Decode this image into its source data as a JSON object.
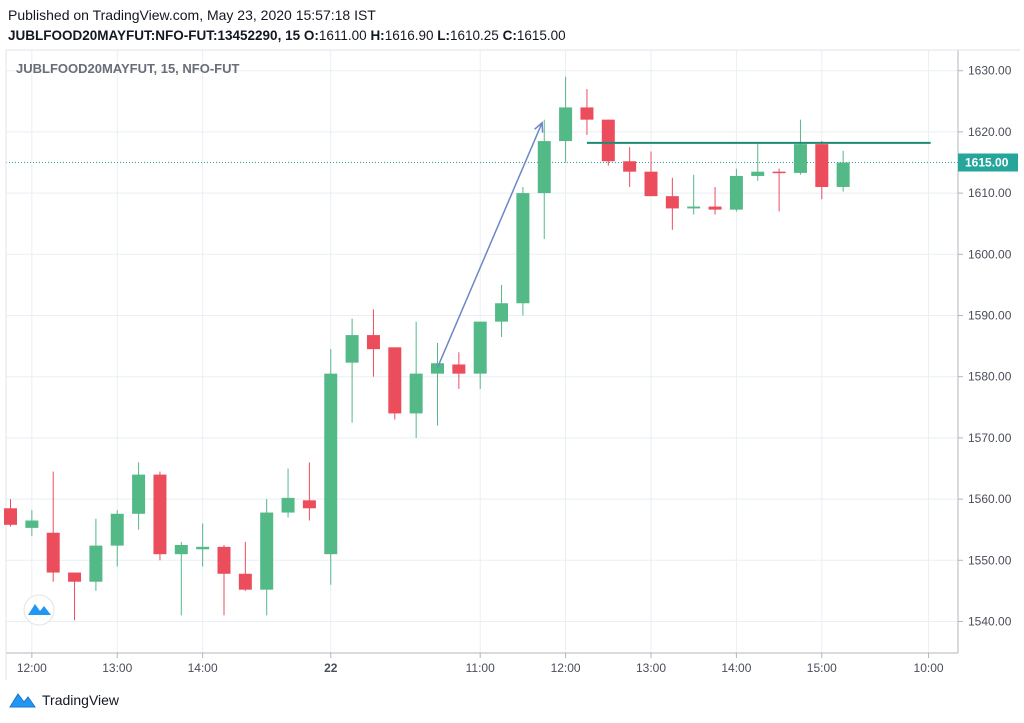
{
  "header": {
    "published": "Published on TradingView.com, May 23, 2020 15:57:18 IST",
    "symbol_line": "JUBLFOOD20MAYFUT:NFO-FUT:13452290, 15",
    "o_label": "O:",
    "o_value": "1611.00",
    "h_label": "H:",
    "h_value": "1616.90",
    "l_label": "L:",
    "l_value": "1610.25",
    "c_label": "C:",
    "c_value": "1615.00"
  },
  "chart_title": "JUBLFOOD20MAYFUT, 15, NFO-FUT",
  "footer": {
    "brand": "TradingView",
    "logo_icon": "tradingview-logo-icon"
  },
  "colors": {
    "up": "#53b987",
    "down": "#eb4d5c",
    "grid": "#e9eff4",
    "price_line": "#26a69a",
    "arrow": "#6d87c7",
    "resistance": "#1f8a70"
  },
  "chart_data": {
    "type": "candlestick",
    "ylim": [
      1535,
      1633
    ],
    "y_ticks": [
      1540,
      1550,
      1560,
      1570,
      1580,
      1590,
      1600,
      1610,
      1620,
      1630
    ],
    "y_tick_labels": [
      "1540.00",
      "1550.00",
      "1560.00",
      "1570.00",
      "1580.00",
      "1590.00",
      "1600.00",
      "1610.00",
      "1620.00",
      "1630.00"
    ],
    "x_ticks": [
      {
        "index": 1,
        "label": "12:00",
        "bold": false
      },
      {
        "index": 5,
        "label": "13:00",
        "bold": false
      },
      {
        "index": 9,
        "label": "14:00",
        "bold": false
      },
      {
        "index": 15,
        "label": "22",
        "bold": true
      },
      {
        "index": 22,
        "label": "11:00",
        "bold": false
      },
      {
        "index": 26,
        "label": "12:00",
        "bold": false
      },
      {
        "index": 30,
        "label": "13:00",
        "bold": false
      },
      {
        "index": 34,
        "label": "14:00",
        "bold": false
      },
      {
        "index": 38,
        "label": "15:00",
        "bold": false
      },
      {
        "index": 43,
        "label": "10:00",
        "bold": false
      }
    ],
    "last_price": 1615.0,
    "last_price_label": "1615.00",
    "candles": [
      {
        "o": 1558.5,
        "h": 1560.0,
        "l": 1555.5,
        "c": 1555.8
      },
      {
        "o": 1555.3,
        "h": 1558.2,
        "l": 1554.0,
        "c": 1556.5
      },
      {
        "o": 1554.5,
        "h": 1564.5,
        "l": 1546.5,
        "c": 1548.0
      },
      {
        "o": 1548.0,
        "h": 1548.0,
        "l": 1540.2,
        "c": 1546.5
      },
      {
        "o": 1546.5,
        "h": 1556.8,
        "l": 1545.0,
        "c": 1552.4
      },
      {
        "o": 1552.4,
        "h": 1558.2,
        "l": 1549.0,
        "c": 1557.6
      },
      {
        "o": 1557.6,
        "h": 1566.0,
        "l": 1555.0,
        "c": 1564.0
      },
      {
        "o": 1564.0,
        "h": 1564.5,
        "l": 1550.0,
        "c": 1551.0
      },
      {
        "o": 1551.0,
        "h": 1553.0,
        "l": 1541.0,
        "c": 1552.5
      },
      {
        "o": 1551.8,
        "h": 1556.0,
        "l": 1549.0,
        "c": 1552.2
      },
      {
        "o": 1552.2,
        "h": 1552.5,
        "l": 1541.0,
        "c": 1547.8
      },
      {
        "o": 1547.8,
        "h": 1553.0,
        "l": 1545.0,
        "c": 1545.2
      },
      {
        "o": 1545.2,
        "h": 1560.0,
        "l": 1541.0,
        "c": 1557.8
      },
      {
        "o": 1557.8,
        "h": 1565.0,
        "l": 1557.0,
        "c": 1560.2
      },
      {
        "o": 1559.8,
        "h": 1566.0,
        "l": 1556.5,
        "c": 1558.5
      },
      {
        "o": 1551.0,
        "h": 1584.5,
        "l": 1546.0,
        "c": 1580.5
      },
      {
        "o": 1582.3,
        "h": 1589.5,
        "l": 1572.5,
        "c": 1586.8
      },
      {
        "o": 1586.8,
        "h": 1591.0,
        "l": 1580.0,
        "c": 1584.5
      },
      {
        "o": 1584.8,
        "h": 1584.8,
        "l": 1573.0,
        "c": 1574.0
      },
      {
        "o": 1574.0,
        "h": 1589.0,
        "l": 1570.0,
        "c": 1580.5
      },
      {
        "o": 1580.5,
        "h": 1585.5,
        "l": 1572.0,
        "c": 1582.2
      },
      {
        "o": 1582.0,
        "h": 1584.0,
        "l": 1578.0,
        "c": 1580.5
      },
      {
        "o": 1580.5,
        "h": 1589.0,
        "l": 1578.0,
        "c": 1589.0
      },
      {
        "o": 1589.0,
        "h": 1595.0,
        "l": 1586.5,
        "c": 1592.0
      },
      {
        "o": 1592.0,
        "h": 1611.0,
        "l": 1590.0,
        "c": 1610.0
      },
      {
        "o": 1610.0,
        "h": 1622.0,
        "l": 1602.5,
        "c": 1618.5
      },
      {
        "o": 1618.5,
        "h": 1629.0,
        "l": 1615.0,
        "c": 1624.0
      },
      {
        "o": 1624.0,
        "h": 1627.0,
        "l": 1619.5,
        "c": 1622.0
      },
      {
        "o": 1622.0,
        "h": 1622.0,
        "l": 1614.5,
        "c": 1615.2
      },
      {
        "o": 1615.2,
        "h": 1617.5,
        "l": 1611.0,
        "c": 1613.5
      },
      {
        "o": 1613.5,
        "h": 1616.8,
        "l": 1609.5,
        "c": 1609.5
      },
      {
        "o": 1609.5,
        "h": 1612.5,
        "l": 1604.0,
        "c": 1607.5
      },
      {
        "o": 1607.5,
        "h": 1613.0,
        "l": 1606.5,
        "c": 1607.8
      },
      {
        "o": 1607.8,
        "h": 1611.0,
        "l": 1606.5,
        "c": 1607.3
      },
      {
        "o": 1607.3,
        "h": 1614.0,
        "l": 1607.0,
        "c": 1612.8
      },
      {
        "o": 1612.8,
        "h": 1618.0,
        "l": 1612.0,
        "c": 1613.5
      },
      {
        "o": 1613.5,
        "h": 1614.0,
        "l": 1607.0,
        "c": 1613.3
      },
      {
        "o": 1613.3,
        "h": 1622.0,
        "l": 1613.0,
        "c": 1618.0
      },
      {
        "o": 1618.0,
        "h": 1618.5,
        "l": 1609.0,
        "c": 1611.0
      },
      {
        "o": 1611.0,
        "h": 1616.9,
        "l": 1610.25,
        "c": 1615.0
      }
    ],
    "drawings": {
      "trend_arrow": {
        "from_index": 20,
        "from_value": 1581.5,
        "to_index": 24.9,
        "to_value": 1621.5
      },
      "resistance_line": {
        "from_index": 27,
        "to_index": 43.1,
        "value": 1618.2
      }
    }
  }
}
